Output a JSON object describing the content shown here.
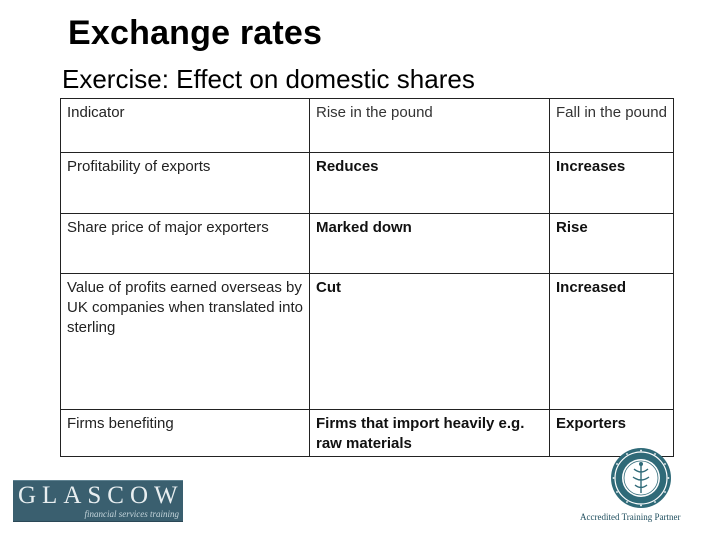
{
  "title": "Exchange rates",
  "subtitle": "Exercise: Effect on domestic shares",
  "table": {
    "rows": [
      [
        "Indicator",
        "Rise in the pound",
        "Fall in the pound"
      ],
      [
        "Profitability of exports",
        "Reduces",
        "Increases"
      ],
      [
        "Share price of major exporters",
        "Marked down",
        "Rise"
      ],
      [
        "Value of profits earned overseas by UK companies when translated into sterling",
        "Cut",
        "Increased"
      ],
      [
        "Firms benefiting",
        "Firms that import heavily e.g. raw materials",
        "Exporters"
      ]
    ]
  },
  "logo": {
    "word": "GLASCOW",
    "tagline": "financial services training"
  },
  "seal": {
    "icon": "university-seal-icon"
  },
  "footer": {
    "partner": "Accredited Training Partner"
  },
  "colors": {
    "logo_bg": "#3a5f6f",
    "seal": "#2f6a78"
  }
}
